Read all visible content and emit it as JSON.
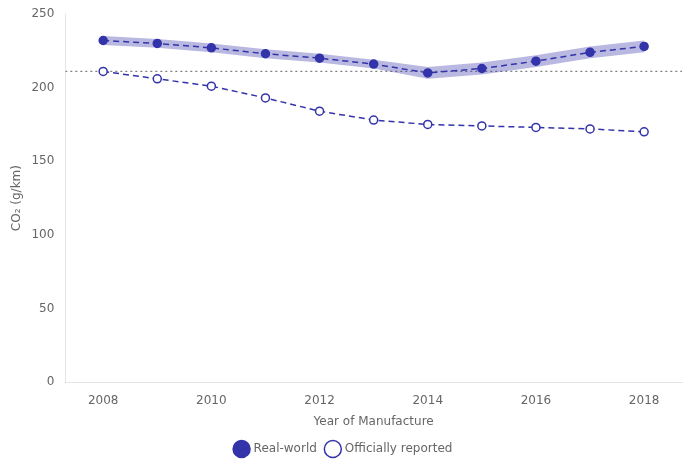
{
  "chart_data": {
    "type": "line",
    "x": [
      2008,
      2009,
      2010,
      2011,
      2012,
      2013,
      2014,
      2015,
      2016,
      2017,
      2018
    ],
    "xlabel": "Year of Manufacture",
    "ylabel": "CO₂ (g/km)",
    "series": [
      {
        "name": "Real-world",
        "color": "#3333AA",
        "line_style": "dashed",
        "marker": "filled",
        "values": [
          232,
          230,
          227,
          223,
          220,
          216,
          210,
          213,
          218,
          224,
          228
        ],
        "upper": [
          235,
          233,
          230,
          226,
          223,
          219,
          214,
          217,
          222,
          228,
          232
        ],
        "lower": [
          229,
          227,
          224,
          220,
          217,
          213,
          206,
          209,
          214,
          220,
          224
        ]
      },
      {
        "name": "Officially reported",
        "color": "#3333AA",
        "line_style": "dashed",
        "marker": "open",
        "values": [
          211,
          206,
          201,
          193,
          184,
          178,
          175,
          174,
          173,
          172,
          170
        ]
      }
    ],
    "hline": 211,
    "xlim": [
      2007.3,
      2018.7
    ],
    "xticks": [
      2008,
      2010,
      2012,
      2014,
      2016,
      2018
    ],
    "ylim": [
      0,
      250
    ],
    "yticks": [
      0,
      50,
      100,
      150,
      200,
      250
    ],
    "grid": false,
    "legend": "bottom"
  }
}
